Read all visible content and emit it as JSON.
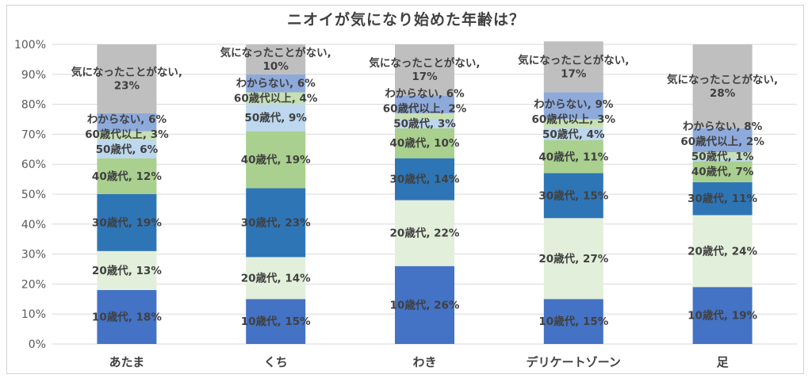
{
  "chart_data": {
    "type": "bar",
    "stacked": true,
    "title": "ニオイが気になり始めた年齢は？",
    "categories": [
      "あたま",
      "くち",
      "わき",
      "デリケートゾーン",
      "足"
    ],
    "ylim": [
      0,
      100
    ],
    "y_ticks": [
      "0%",
      "10%",
      "20%",
      "30%",
      "40%",
      "50%",
      "60%",
      "70%",
      "80%",
      "90%",
      "100%"
    ],
    "grid": true,
    "legend": "none",
    "series": [
      {
        "name": "10歳代",
        "color": "#4472c4",
        "values": [
          18,
          15,
          26,
          15,
          19
        ],
        "labels": [
          "10歳代, 18%",
          "10歳代, 15%",
          "10歳代, 26%",
          "10歳代, 15%",
          "10歳代, 19%"
        ]
      },
      {
        "name": "20歳代",
        "color": "#e2efda",
        "values": [
          13,
          14,
          22,
          27,
          24
        ],
        "labels": [
          "20歳代, 13%",
          "20歳代, 14%",
          "20歳代, 22%",
          "20歳代, 27%",
          "20歳代, 24%"
        ]
      },
      {
        "name": "30歳代",
        "color": "#2e75b6",
        "values": [
          19,
          23,
          14,
          15,
          11
        ],
        "labels": [
          "30歳代, 19%",
          "30歳代, 23%",
          "30歳代, 14%",
          "30歳代, 15%",
          "30歳代, 11%"
        ]
      },
      {
        "name": "40歳代",
        "color": "#a9d08e",
        "values": [
          12,
          19,
          10,
          11,
          7
        ],
        "labels": [
          "40歳代, 12%",
          "40歳代, 19%",
          "40歳代, 10%",
          "40歳代, 11%",
          "40歳代, 7%"
        ]
      },
      {
        "name": "50歳代",
        "color": "#bdd7ee",
        "values": [
          6,
          9,
          3,
          4,
          1
        ],
        "labels": [
          "50歳代, 6%",
          "50歳代, 9%",
          "50歳代, 3%",
          "50歳代, 4%",
          "50歳代, 1%"
        ]
      },
      {
        "name": "60歳代以上",
        "color": "#c6e0b4",
        "values": [
          3,
          4,
          2,
          3,
          2
        ],
        "labels": [
          "60歳代以上, 3%",
          "60歳代以上, 4%",
          "60歳代以上, 2%",
          "60歳代以上, 3%",
          "60歳代以上, 2%"
        ]
      },
      {
        "name": "わからない",
        "color": "#8eaadb",
        "values": [
          6,
          6,
          6,
          9,
          8
        ],
        "labels": [
          "わからない, 6%",
          "わからない, 6%",
          "わからない, 6%",
          "わからない, 9%",
          "わからない, 8%"
        ]
      },
      {
        "name": "気になったことがない",
        "color": "#bfbfbf",
        "values": [
          23,
          10,
          17,
          17,
          28
        ],
        "labels": [
          "気になったことがない,\n23%",
          "気になったことがない,\n10%",
          "気になったことがない,\n17%",
          "気になったことがない,\n17%",
          "気になったことがない,\n28%"
        ]
      }
    ]
  }
}
